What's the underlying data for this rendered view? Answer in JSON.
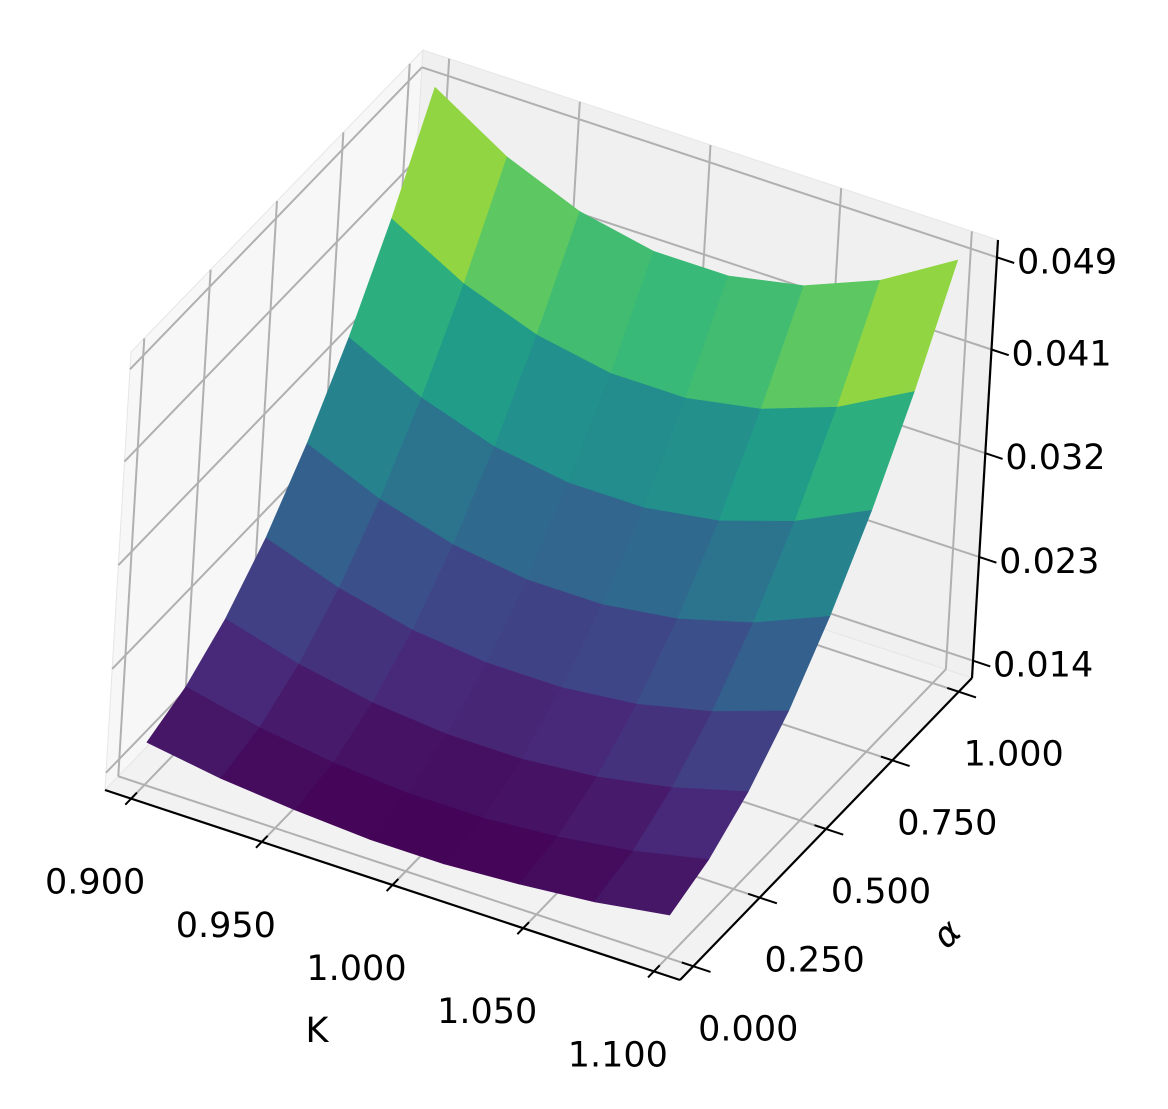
{
  "chart_data": {
    "type": "surface",
    "colormap": "viridis",
    "xlabel": "K",
    "ylabel": "α",
    "x": [
      0.9,
      0.9286,
      0.9571,
      0.9857,
      1.0143,
      1.0429,
      1.0714,
      1.1
    ],
    "y": [
      0,
      0.1429,
      0.2857,
      0.4286,
      0.5714,
      0.7143,
      0.8571,
      1
    ],
    "z": [
      [
        0.0162,
        0.0152,
        0.0146,
        0.0142,
        0.0142,
        0.0146,
        0.0152,
        0.0162
      ],
      [
        0.0176,
        0.0162,
        0.0153,
        0.0148,
        0.0148,
        0.0153,
        0.0162,
        0.0176
      ],
      [
        0.0201,
        0.0183,
        0.0171,
        0.0165,
        0.0165,
        0.0171,
        0.0183,
        0.0201
      ],
      [
        0.0237,
        0.0215,
        0.02,
        0.0193,
        0.0193,
        0.02,
        0.0215,
        0.0237
      ],
      [
        0.0285,
        0.0258,
        0.024,
        0.0231,
        0.0231,
        0.024,
        0.0258,
        0.0285
      ],
      [
        0.0343,
        0.0312,
        0.0291,
        0.0281,
        0.0281,
        0.0291,
        0.0312,
        0.0343
      ],
      [
        0.0412,
        0.0377,
        0.0354,
        0.0342,
        0.0342,
        0.0354,
        0.0377,
        0.0412
      ],
      [
        0.0492,
        0.0453,
        0.0427,
        0.0414,
        0.0414,
        0.0427,
        0.0453,
        0.0492
      ]
    ],
    "xlim": [
      0.89,
      1.11
    ],
    "ylim": [
      -0.05,
      1.05
    ],
    "zlim": [
      0.0125,
      0.0505
    ],
    "xticks": [
      {
        "value": 0.9,
        "label": "0.900"
      },
      {
        "value": 0.95,
        "label": "0.950"
      },
      {
        "value": 1.0,
        "label": "1.000"
      },
      {
        "value": 1.05,
        "label": "1.050"
      },
      {
        "value": 1.1,
        "label": "1.100"
      }
    ],
    "yticks": [
      {
        "value": 0,
        "label": "0.000"
      },
      {
        "value": 0.25,
        "label": "0.250"
      },
      {
        "value": 0.5,
        "label": "0.500"
      },
      {
        "value": 0.75,
        "label": "0.750"
      },
      {
        "value": 1,
        "label": "1.000"
      }
    ],
    "zticks": [
      0.014,
      0.023,
      0.032,
      0.041,
      0.049
    ],
    "grid": true
  }
}
